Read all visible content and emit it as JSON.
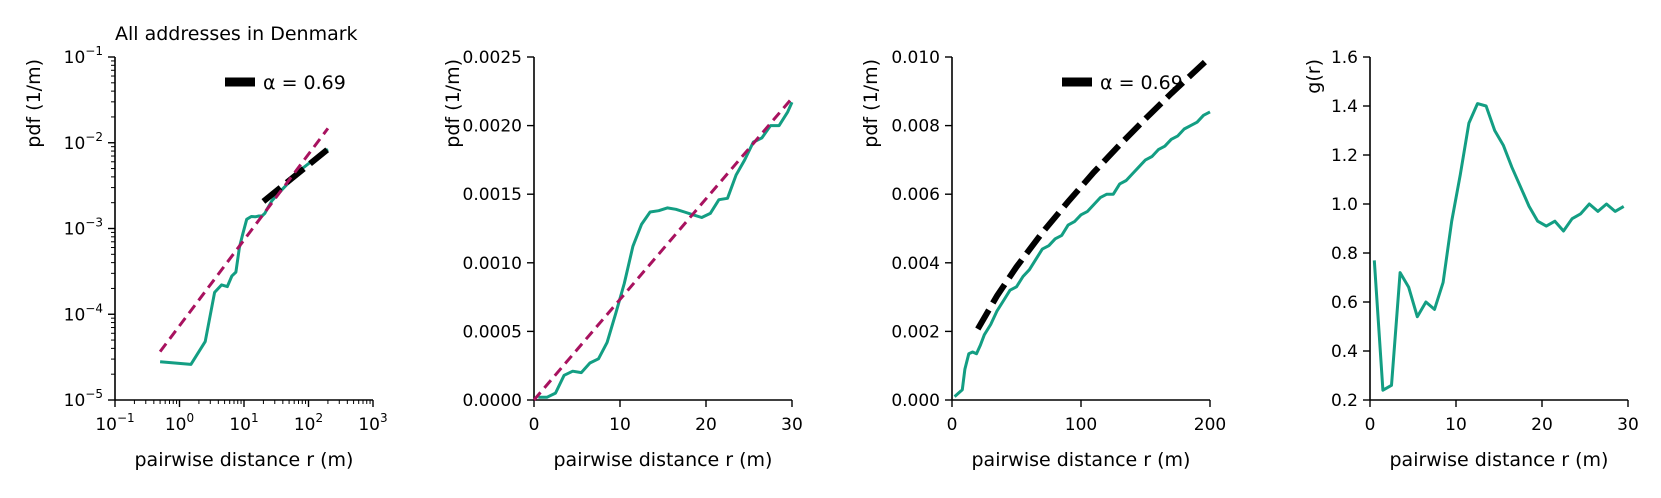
{
  "colors": {
    "data": "#139e83",
    "fit": "#000000",
    "ref": "#a8125f"
  },
  "chart_data": [
    {
      "type": "line",
      "title": "All addresses in Denmark",
      "xlabel": "pairwise distance r (m)",
      "ylabel": "pdf (1/m)",
      "xscale": "log",
      "yscale": "log",
      "xlim": [
        0.1,
        1000
      ],
      "ylim": [
        1e-05,
        0.1
      ],
      "xticks": [
        0.1,
        1,
        10,
        100,
        1000
      ],
      "xtick_labels": [
        [
          "10",
          "−1"
        ],
        [
          "10",
          "0"
        ],
        [
          "10",
          "1"
        ],
        [
          "10",
          "2"
        ],
        [
          "10",
          "3"
        ]
      ],
      "yticks": [
        1e-05,
        0.0001,
        0.001,
        0.01,
        0.1
      ],
      "ytick_labels": [
        [
          "10",
          "−5"
        ],
        [
          "10",
          "−4"
        ],
        [
          "10",
          "−3"
        ],
        [
          "10",
          "−2"
        ],
        [
          "10",
          "−1"
        ]
      ],
      "legend": {
        "label": "α = 0.69",
        "position": "top-right"
      },
      "series": [
        {
          "name": "data",
          "style": "solid",
          "x": [
            0.5,
            1.5,
            2.5,
            3.5,
            4.5,
            5.5,
            6.5,
            7.5,
            8.5,
            9.5,
            11,
            13,
            15,
            17,
            19,
            21,
            23,
            25,
            27,
            30,
            40,
            60,
            80,
            100,
            150,
            200
          ],
          "y": [
            2.8e-05,
            2.6e-05,
            4.8e-05,
            0.00018,
            0.00022,
            0.00021,
            0.00028,
            0.00031,
            0.0006,
            0.00085,
            0.00128,
            0.00138,
            0.00137,
            0.0014,
            0.0014,
            0.0015,
            0.0017,
            0.0019,
            0.0021,
            0.0023,
            0.0029,
            0.004,
            0.005,
            0.0057,
            0.0072,
            0.0084
          ]
        },
        {
          "name": "α = 0.69",
          "style": "dashed-thick",
          "x": [
            20,
            200
          ],
          "y": [
            0.00207,
            0.0084
          ]
        },
        {
          "name": "reference",
          "style": "dashed",
          "x": [
            0.5,
            200
          ],
          "y": [
            3.67e-05,
            0.0147
          ]
        }
      ]
    },
    {
      "type": "line",
      "title": "",
      "xlabel": "pairwise distance r (m)",
      "ylabel": "pdf (1/m)",
      "xscale": "linear",
      "yscale": "linear",
      "xlim": [
        0,
        30
      ],
      "ylim": [
        0,
        0.0025
      ],
      "xticks": [
        0,
        10,
        20,
        30
      ],
      "xtick_labels": [
        "0",
        "10",
        "20",
        "30"
      ],
      "yticks": [
        0,
        0.0005,
        0.001,
        0.0015,
        0.002,
        0.0025
      ],
      "ytick_labels": [
        "0.0000",
        "0.0005",
        "0.0010",
        "0.0015",
        "0.0020",
        "0.0025"
      ],
      "series": [
        {
          "name": "data",
          "style": "solid",
          "x": [
            0.5,
            1.5,
            2.5,
            3.5,
            4.5,
            5.5,
            6.5,
            7.5,
            8.5,
            9.5,
            10.5,
            11.5,
            12.5,
            13.5,
            14.5,
            15.5,
            16.5,
            17.5,
            18.5,
            19.5,
            20.5,
            21.5,
            22.5,
            23.5,
            24.5,
            25.5,
            26.5,
            27.5,
            28.5,
            29.5,
            30
          ],
          "y": [
            2e-05,
            2e-05,
            5e-05,
            0.00018,
            0.00021,
            0.0002,
            0.00027,
            0.0003,
            0.00042,
            0.00063,
            0.00085,
            0.00112,
            0.00128,
            0.00137,
            0.00138,
            0.0014,
            0.00139,
            0.00137,
            0.00135,
            0.00133,
            0.00136,
            0.00146,
            0.00147,
            0.00164,
            0.00175,
            0.00188,
            0.00191,
            0.002,
            0.002,
            0.0021,
            0.00217
          ]
        },
        {
          "name": "reference",
          "style": "dashed",
          "x": [
            0,
            30
          ],
          "y": [
            0,
            0.0022
          ]
        }
      ]
    },
    {
      "type": "line",
      "title": "",
      "xlabel": "pairwise distance r (m)",
      "ylabel": "pdf (1/m)",
      "xscale": "linear",
      "yscale": "linear",
      "xlim": [
        0,
        200
      ],
      "ylim": [
        0,
        0.01
      ],
      "xticks": [
        0,
        100,
        200
      ],
      "xtick_labels": [
        "0",
        "100",
        "200"
      ],
      "yticks": [
        0,
        0.002,
        0.004,
        0.006,
        0.008,
        0.01
      ],
      "ytick_labels": [
        "0.000",
        "0.002",
        "0.004",
        "0.006",
        "0.008",
        "0.010"
      ],
      "legend": {
        "label": "α = 0.69",
        "position": "top-right"
      },
      "series": [
        {
          "name": "data",
          "style": "solid",
          "x": [
            2,
            5,
            8,
            10,
            13,
            16,
            19,
            22,
            25,
            30,
            35,
            40,
            45,
            50,
            55,
            60,
            65,
            70,
            75,
            80,
            85,
            90,
            95,
            100,
            105,
            110,
            115,
            120,
            125,
            130,
            135,
            140,
            145,
            150,
            155,
            160,
            165,
            170,
            175,
            180,
            185,
            190,
            195,
            200
          ],
          "y": [
            0.0001,
            0.0002,
            0.0003,
            0.0009,
            0.00135,
            0.0014,
            0.00135,
            0.0016,
            0.0019,
            0.0022,
            0.0026,
            0.0029,
            0.0032,
            0.0033,
            0.0036,
            0.0038,
            0.0041,
            0.0044,
            0.0045,
            0.0047,
            0.0048,
            0.0051,
            0.0052,
            0.0054,
            0.0055,
            0.0057,
            0.0059,
            0.006,
            0.006,
            0.0063,
            0.0064,
            0.0066,
            0.0068,
            0.007,
            0.0071,
            0.0073,
            0.0074,
            0.0076,
            0.0077,
            0.0079,
            0.008,
            0.0081,
            0.0083,
            0.0084
          ]
        },
        {
          "name": "α = 0.69",
          "style": "dashed-thick",
          "x": [
            20,
            35,
            50,
            70,
            90,
            110,
            130,
            150,
            170,
            200
          ],
          "y": [
            0.00207,
            0.00304,
            0.00388,
            0.00488,
            0.00578,
            0.00664,
            0.00744,
            0.0082,
            0.00894,
            0.00999
          ]
        }
      ]
    },
    {
      "type": "line",
      "title": "",
      "xlabel": "pairwise distance r (m)",
      "ylabel": "g(r)",
      "xscale": "linear",
      "yscale": "linear",
      "xlim": [
        0,
        30
      ],
      "ylim": [
        0.2,
        1.6
      ],
      "xticks": [
        0,
        10,
        20,
        30
      ],
      "xtick_labels": [
        "0",
        "10",
        "20",
        "30"
      ],
      "yticks": [
        0.2,
        0.4,
        0.6,
        0.8,
        1.0,
        1.2,
        1.4,
        1.6
      ],
      "ytick_labels": [
        "0.2",
        "0.4",
        "0.6",
        "0.8",
        "1.0",
        "1.2",
        "1.4",
        "1.6"
      ],
      "series": [
        {
          "name": "data",
          "style": "solid",
          "x": [
            0.5,
            1.5,
            2.5,
            3.5,
            4.5,
            5.5,
            6.5,
            7.5,
            8.5,
            9.5,
            10.5,
            11.5,
            12.5,
            13.5,
            14.5,
            15.5,
            16.5,
            17.5,
            18.5,
            19.5,
            20.5,
            21.5,
            22.5,
            23.5,
            24.5,
            25.5,
            26.5,
            27.5,
            28.5,
            29.5
          ],
          "y": [
            0.77,
            0.24,
            0.26,
            0.72,
            0.66,
            0.54,
            0.6,
            0.57,
            0.68,
            0.93,
            1.12,
            1.33,
            1.41,
            1.4,
            1.3,
            1.24,
            1.15,
            1.07,
            0.99,
            0.93,
            0.91,
            0.93,
            0.89,
            0.94,
            0.96,
            1.0,
            0.97,
            1.0,
            0.97,
            0.99
          ]
        }
      ]
    }
  ]
}
